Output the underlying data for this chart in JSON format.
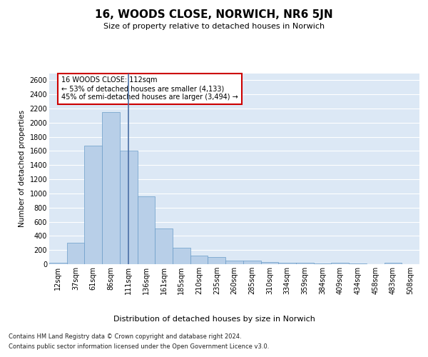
{
  "title": "16, WOODS CLOSE, NORWICH, NR6 5JN",
  "subtitle": "Size of property relative to detached houses in Norwich",
  "xlabel": "Distribution of detached houses by size in Norwich",
  "ylabel": "Number of detached properties",
  "bar_color": "#b8cfe8",
  "bar_edge_color": "#6a9cc8",
  "vline_color": "#4a6fa5",
  "annotation_text": "16 WOODS CLOSE: 112sqm\n← 53% of detached houses are smaller (4,133)\n45% of semi-detached houses are larger (3,494) →",
  "annotation_box_color": "#cc0000",
  "footer_line1": "Contains HM Land Registry data © Crown copyright and database right 2024.",
  "footer_line2": "Contains public sector information licensed under the Open Government Licence v3.0.",
  "categories": [
    "12sqm",
    "37sqm",
    "61sqm",
    "86sqm",
    "111sqm",
    "136sqm",
    "161sqm",
    "185sqm",
    "210sqm",
    "235sqm",
    "260sqm",
    "285sqm",
    "310sqm",
    "334sqm",
    "359sqm",
    "384sqm",
    "409sqm",
    "434sqm",
    "458sqm",
    "483sqm",
    "508sqm"
  ],
  "values": [
    25,
    300,
    1680,
    2150,
    1600,
    960,
    505,
    235,
    120,
    100,
    48,
    48,
    30,
    20,
    20,
    15,
    20,
    15,
    5,
    20,
    5
  ],
  "vline_x_index": 4,
  "ylim": [
    0,
    2700
  ],
  "yticks": [
    0,
    200,
    400,
    600,
    800,
    1000,
    1200,
    1400,
    1600,
    1800,
    2000,
    2200,
    2400,
    2600
  ],
  "bg_color": "#dce8f5",
  "fig_bg_color": "#ffffff",
  "grid_color": "#ffffff",
  "title_fontsize": 11,
  "subtitle_fontsize": 8,
  "xlabel_fontsize": 8,
  "ylabel_fontsize": 7.5,
  "tick_fontsize": 7,
  "footer_fontsize": 6,
  "annotation_fontsize": 7
}
